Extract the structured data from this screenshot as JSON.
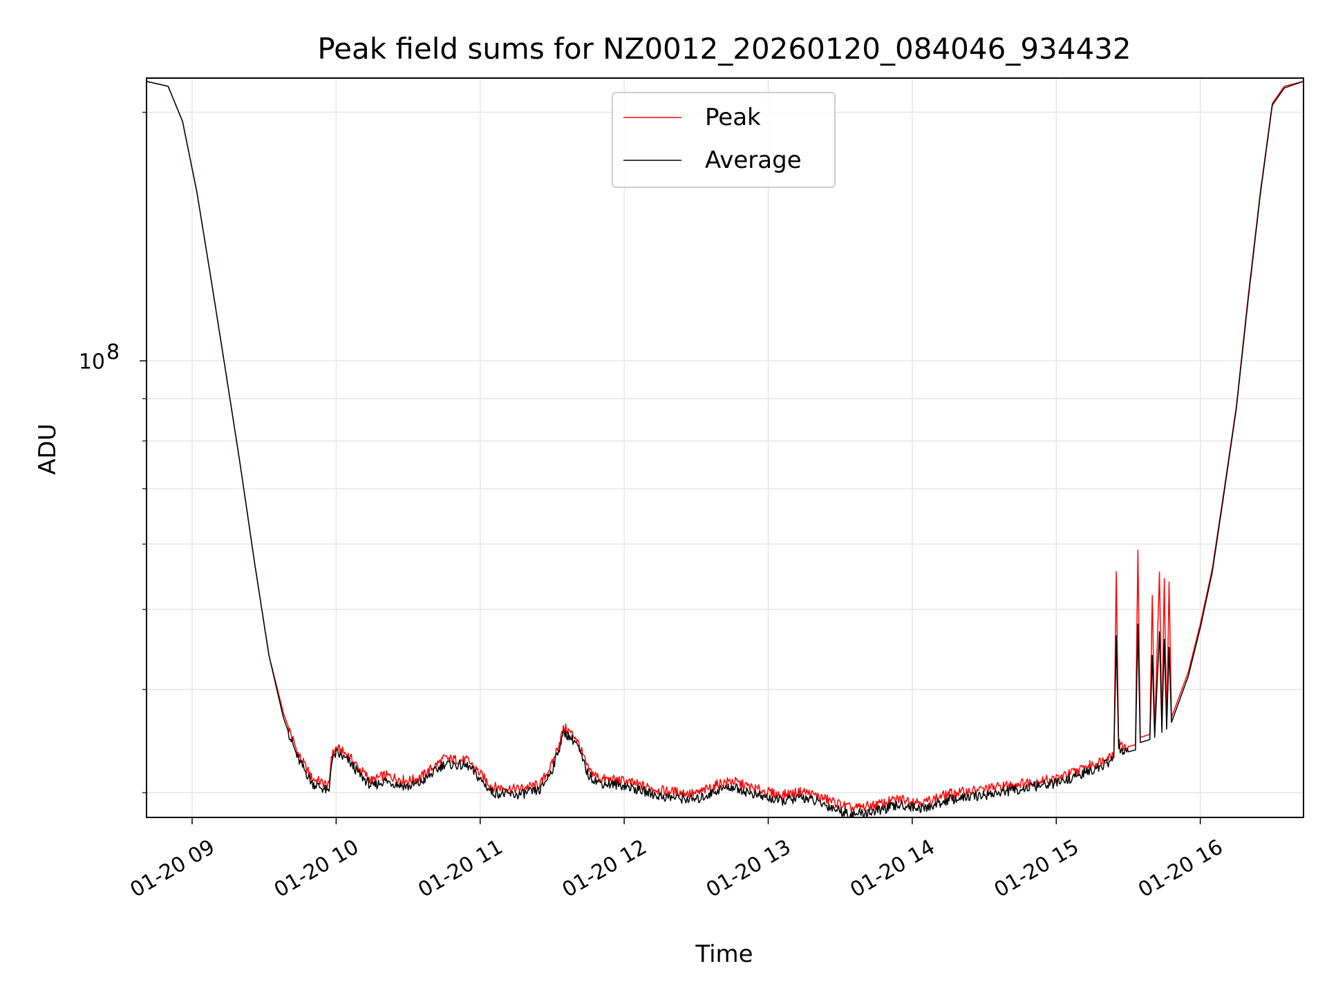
{
  "chart_data": {
    "type": "line",
    "title": "Peak field sums for NZ0012_20260120_084046_934432",
    "xlabel": "Time",
    "ylabel": "ADU",
    "y_scale": "log",
    "ylim": [
      28000000,
      220000000
    ],
    "xlim": [
      "2026-01-20 08:41",
      "2026-01-20 16:43"
    ],
    "x_ticks": [
      "2026-01-20 09:00",
      "2026-01-20 10:00",
      "2026-01-20 11:00",
      "2026-01-20 12:00",
      "2026-01-20 13:00",
      "2026-01-20 14:00",
      "2026-01-20 15:00",
      "2026-01-20 16:00"
    ],
    "x_tick_labels": [
      "01-20 09",
      "01-20 10",
      "01-20 11",
      "01-20 12",
      "01-20 13",
      "01-20 14",
      "01-20 15",
      "01-20 16"
    ],
    "y_tick_labels": [
      {
        "base": "10",
        "exp": "8",
        "value": 100000000
      }
    ],
    "y_minor_ticks": [
      30000000,
      40000000,
      50000000,
      60000000,
      70000000,
      80000000,
      90000000,
      200000000
    ],
    "grid": true,
    "legend_position": "top-center",
    "series": [
      {
        "name": "Peak",
        "color": "#ff0000",
        "points": [
          [
            "2026-01-20 08:41",
            218000000
          ],
          [
            "2026-01-20 08:50",
            215000000
          ],
          [
            "2026-01-20 08:56",
            195000000
          ],
          [
            "2026-01-20 09:02",
            160000000
          ],
          [
            "2026-01-20 09:08",
            125000000
          ],
          [
            "2026-01-20 09:14",
            97000000
          ],
          [
            "2026-01-20 09:20",
            75000000
          ],
          [
            "2026-01-20 09:26",
            57000000
          ],
          [
            "2026-01-20 09:32",
            44000000
          ],
          [
            "2026-01-20 09:38",
            37500000
          ],
          [
            "2026-01-20 09:44",
            33500000
          ],
          [
            "2026-01-20 09:50",
            31200000
          ],
          [
            "2026-01-20 09:55",
            30800000
          ],
          [
            "2026-01-20 09:57",
            30500000
          ],
          [
            "2026-01-20 09:58",
            33200000
          ],
          [
            "2026-01-20 10:00",
            34000000
          ],
          [
            "2026-01-20 10:05",
            33300000
          ],
          [
            "2026-01-20 10:10",
            32000000
          ],
          [
            "2026-01-20 10:15",
            31000000
          ],
          [
            "2026-01-20 10:20",
            31500000
          ],
          [
            "2026-01-20 10:30",
            31000000
          ],
          [
            "2026-01-20 10:35",
            31300000
          ],
          [
            "2026-01-20 10:45",
            33000000
          ],
          [
            "2026-01-20 10:55",
            32800000
          ],
          [
            "2026-01-20 11:05",
            30500000
          ],
          [
            "2026-01-20 11:15",
            30300000
          ],
          [
            "2026-01-20 11:25",
            30700000
          ],
          [
            "2026-01-20 11:30",
            32500000
          ],
          [
            "2026-01-20 11:35",
            36000000
          ],
          [
            "2026-01-20 11:40",
            35000000
          ],
          [
            "2026-01-20 11:45",
            32000000
          ],
          [
            "2026-01-20 11:50",
            31200000
          ],
          [
            "2026-01-20 12:00",
            31000000
          ],
          [
            "2026-01-20 12:15",
            30200000
          ],
          [
            "2026-01-20 12:30",
            29900000
          ],
          [
            "2026-01-20 12:40",
            30800000
          ],
          [
            "2026-01-20 12:45",
            31000000
          ],
          [
            "2026-01-20 12:55",
            30300000
          ],
          [
            "2026-01-20 13:05",
            29800000
          ],
          [
            "2026-01-20 13:15",
            30100000
          ],
          [
            "2026-01-20 13:25",
            29400000
          ],
          [
            "2026-01-20 13:35",
            28700000
          ],
          [
            "2026-01-20 13:45",
            29000000
          ],
          [
            "2026-01-20 13:55",
            29500000
          ],
          [
            "2026-01-20 14:05",
            29200000
          ],
          [
            "2026-01-20 14:15",
            29900000
          ],
          [
            "2026-01-20 14:30",
            30300000
          ],
          [
            "2026-01-20 14:45",
            30800000
          ],
          [
            "2026-01-20 15:00",
            31200000
          ],
          [
            "2026-01-20 15:10",
            32000000
          ],
          [
            "2026-01-20 15:20",
            32900000
          ],
          [
            "2026-01-20 15:24",
            33500000
          ],
          [
            "2026-01-20 15:25",
            55000000
          ],
          [
            "2026-01-20 15:26",
            34500000
          ],
          [
            "2026-01-20 15:28",
            34000000
          ],
          [
            "2026-01-20 15:33",
            34300000
          ],
          [
            "2026-01-20 15:34",
            59000000
          ],
          [
            "2026-01-20 15:35",
            35000000
          ],
          [
            "2026-01-20 15:39",
            35300000
          ],
          [
            "2026-01-20 15:40",
            52000000
          ],
          [
            "2026-01-20 15:41",
            35500000
          ],
          [
            "2026-01-20 15:43",
            55500000
          ],
          [
            "2026-01-20 15:44",
            36000000
          ],
          [
            "2026-01-20 15:45",
            54500000
          ],
          [
            "2026-01-20 15:46",
            36200000
          ],
          [
            "2026-01-20 15:47",
            54000000
          ],
          [
            "2026-01-20 15:48",
            37000000
          ],
          [
            "2026-01-20 15:55",
            42000000
          ],
          [
            "2026-01-20 16:00",
            48000000
          ],
          [
            "2026-01-20 16:05",
            56000000
          ],
          [
            "2026-01-20 16:10",
            70000000
          ],
          [
            "2026-01-20 16:15",
            88000000
          ],
          [
            "2026-01-20 16:20",
            120000000
          ],
          [
            "2026-01-20 16:25",
            160000000
          ],
          [
            "2026-01-20 16:30",
            205000000
          ],
          [
            "2026-01-20 16:35",
            215000000
          ],
          [
            "2026-01-20 16:43",
            218000000
          ]
        ]
      },
      {
        "name": "Average",
        "color": "#000000",
        "points": [
          [
            "2026-01-20 08:41",
            218000000
          ],
          [
            "2026-01-20 08:50",
            215000000
          ],
          [
            "2026-01-20 08:56",
            195000000
          ],
          [
            "2026-01-20 09:02",
            160000000
          ],
          [
            "2026-01-20 09:08",
            125000000
          ],
          [
            "2026-01-20 09:14",
            97000000
          ],
          [
            "2026-01-20 09:20",
            75000000
          ],
          [
            "2026-01-20 09:26",
            57000000
          ],
          [
            "2026-01-20 09:32",
            44000000
          ],
          [
            "2026-01-20 09:38",
            37000000
          ],
          [
            "2026-01-20 09:44",
            33000000
          ],
          [
            "2026-01-20 09:50",
            30800000
          ],
          [
            "2026-01-20 09:55",
            30300000
          ],
          [
            "2026-01-20 09:57",
            30000000
          ],
          [
            "2026-01-20 09:58",
            32700000
          ],
          [
            "2026-01-20 10:00",
            33500000
          ],
          [
            "2026-01-20 10:05",
            32800000
          ],
          [
            "2026-01-20 10:10",
            31500000
          ],
          [
            "2026-01-20 10:15",
            30500000
          ],
          [
            "2026-01-20 10:20",
            31000000
          ],
          [
            "2026-01-20 10:30",
            30500000
          ],
          [
            "2026-01-20 10:35",
            30800000
          ],
          [
            "2026-01-20 10:45",
            32500000
          ],
          [
            "2026-01-20 10:55",
            32300000
          ],
          [
            "2026-01-20 11:05",
            30000000
          ],
          [
            "2026-01-20 11:15",
            29800000
          ],
          [
            "2026-01-20 11:25",
            30200000
          ],
          [
            "2026-01-20 11:30",
            32000000
          ],
          [
            "2026-01-20 11:35",
            35500000
          ],
          [
            "2026-01-20 11:40",
            34500000
          ],
          [
            "2026-01-20 11:45",
            31500000
          ],
          [
            "2026-01-20 11:50",
            30800000
          ],
          [
            "2026-01-20 12:00",
            30600000
          ],
          [
            "2026-01-20 12:15",
            29700000
          ],
          [
            "2026-01-20 12:30",
            29400000
          ],
          [
            "2026-01-20 12:40",
            30300000
          ],
          [
            "2026-01-20 12:45",
            30500000
          ],
          [
            "2026-01-20 12:55",
            29800000
          ],
          [
            "2026-01-20 13:05",
            29300000
          ],
          [
            "2026-01-20 13:15",
            29600000
          ],
          [
            "2026-01-20 13:25",
            28900000
          ],
          [
            "2026-01-20 13:35",
            28200000
          ],
          [
            "2026-01-20 13:45",
            28500000
          ],
          [
            "2026-01-20 13:55",
            29000000
          ],
          [
            "2026-01-20 14:05",
            28700000
          ],
          [
            "2026-01-20 14:15",
            29400000
          ],
          [
            "2026-01-20 14:30",
            29800000
          ],
          [
            "2026-01-20 14:45",
            30300000
          ],
          [
            "2026-01-20 15:00",
            30800000
          ],
          [
            "2026-01-20 15:10",
            31500000
          ],
          [
            "2026-01-20 15:20",
            32400000
          ],
          [
            "2026-01-20 15:24",
            33000000
          ],
          [
            "2026-01-20 15:25",
            46000000
          ],
          [
            "2026-01-20 15:26",
            34000000
          ],
          [
            "2026-01-20 15:28",
            33500000
          ],
          [
            "2026-01-20 15:33",
            33800000
          ],
          [
            "2026-01-20 15:34",
            48000000
          ],
          [
            "2026-01-20 15:35",
            34500000
          ],
          [
            "2026-01-20 15:39",
            34800000
          ],
          [
            "2026-01-20 15:40",
            44000000
          ],
          [
            "2026-01-20 15:41",
            35000000
          ],
          [
            "2026-01-20 15:43",
            47000000
          ],
          [
            "2026-01-20 15:44",
            35500000
          ],
          [
            "2026-01-20 15:45",
            46000000
          ],
          [
            "2026-01-20 15:46",
            35800000
          ],
          [
            "2026-01-20 15:47",
            45000000
          ],
          [
            "2026-01-20 15:48",
            36500000
          ],
          [
            "2026-01-20 15:55",
            41500000
          ],
          [
            "2026-01-20 16:00",
            47500000
          ],
          [
            "2026-01-20 16:05",
            55500000
          ],
          [
            "2026-01-20 16:10",
            69500000
          ],
          [
            "2026-01-20 16:15",
            87500000
          ],
          [
            "2026-01-20 16:20",
            119000000
          ],
          [
            "2026-01-20 16:25",
            159000000
          ],
          [
            "2026-01-20 16:30",
            204000000
          ],
          [
            "2026-01-20 16:35",
            214000000
          ],
          [
            "2026-01-20 16:43",
            218000000
          ]
        ]
      }
    ]
  }
}
